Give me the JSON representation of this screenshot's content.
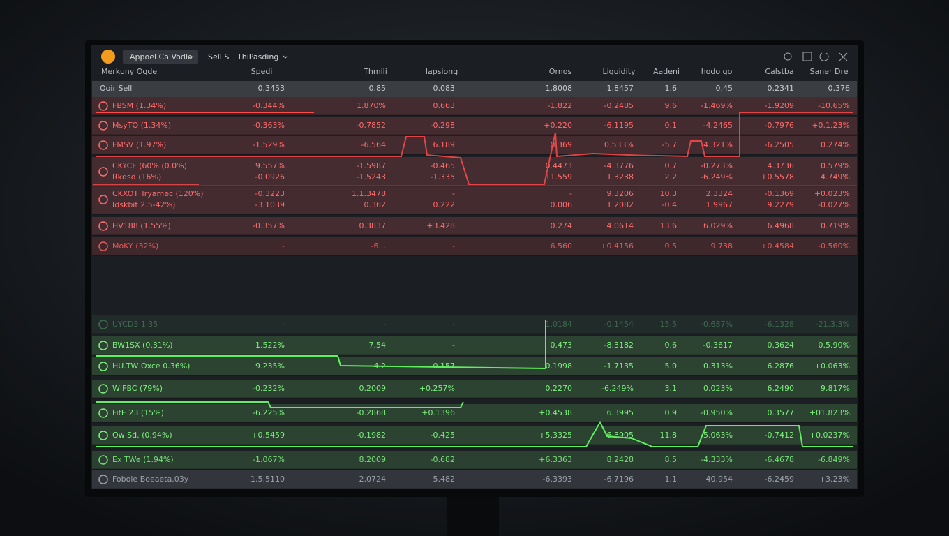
{
  "toolbar": {
    "selector": "Appoel Ca Vodle",
    "mode": "Sell S",
    "filter": "ThiPasding"
  },
  "header": [
    "Merkuny Oqde",
    "Spedi",
    "Thmili",
    "Iapsiong",
    "Ornos",
    "Liquidity",
    "Aadeni",
    "hodo go",
    "Calstba",
    "Saner Dre"
  ],
  "subheader": [
    "Ooir Sell",
    "0.3453",
    "0.85",
    "0.083",
    "1.8008",
    "1.8457",
    "1.6",
    "0.45",
    "0.2341",
    "0.376"
  ],
  "rows": [
    {
      "color": "#ff6a6a",
      "lines": [
        [
          "FBSM (1.34%)",
          "-0.344%",
          "1.870%",
          "0.663",
          "-1.822",
          "-0.2485",
          "9.6",
          "-1.469%",
          "-1.9209",
          "-10.65%"
        ]
      ]
    },
    {
      "color": "#ff6a6a",
      "lines": [
        [
          "MsyTO (1.34%)",
          "-0.363%",
          "-0.7852",
          "-0.298",
          "+0.220",
          "-6.1195",
          "0.1",
          "-4.2465",
          "-0.7976",
          "+0.1.23%"
        ]
      ]
    },
    {
      "color": "#ff6a6a",
      "lines": [
        [
          "FMSV (1.97%)",
          "-1.529%",
          "-6.564",
          "6.189",
          "0.369",
          "0.533%",
          "-5.7",
          "4.321%",
          "-6.2505",
          "0.274%"
        ]
      ]
    },
    {
      "color": "#ff7070",
      "lines": [
        [
          "CKYCF (60% (0.0%)",
          "9.557%",
          "-1.5987",
          "-0.465",
          "0.4473",
          "-4.3776",
          "0.7",
          "-0.273%",
          "4.3736",
          "0.579%"
        ],
        [
          "Rkdsd (16%)",
          "-0.0926",
          "-1.5243",
          "-1.335",
          "11.559",
          "1.3238",
          "2.2",
          "-6.249%",
          "+0.5578",
          "4.749%"
        ]
      ]
    },
    {
      "color": "#ff6a6a",
      "lines": [
        [
          "CKXOT Tryamec (120%)",
          "-0.3223",
          "1.1.3478",
          "-",
          "-",
          "9.3206",
          "10.3",
          "2.3324",
          "-0.1369",
          "+0.023%"
        ],
        [
          "Idskbit 2.5-42%)",
          "-3.1039",
          "0.362",
          "0.222",
          "0.006",
          "1.2082",
          "-0.4",
          "1.9967",
          "9.2279",
          "-0.027%"
        ]
      ]
    },
    {
      "color": "#ff7070",
      "lines": [
        [
          "HV188 (1.55%)",
          "-0.357%",
          "0.3837",
          "+3.428",
          "0.274",
          "4.0614",
          "13.6",
          "6.029%",
          "6.4968",
          "0.719%"
        ]
      ]
    },
    {
      "color": "#e25a5a",
      "lines": [
        [
          "MoKY (32%)",
          "-",
          "-6...",
          "-",
          "6.560",
          "+0.4156",
          "0.5",
          "9.738",
          "+0.4584",
          "-0.560%"
        ]
      ]
    },
    {
      "color": "#3f6a4f",
      "lines": [
        [
          "UYCD3 1.35",
          "-",
          "-",
          "-",
          "1.0184",
          "-0.1454",
          "15.5",
          "-0.687%",
          "-6.1328",
          "-21.3.3%"
        ]
      ]
    },
    {
      "color": "#7cf07c",
      "lines": [
        [
          "BW1SX (0.31%)",
          "1.522%",
          "7.54",
          "-",
          "0.473",
          "-8.3182",
          "0.6",
          "-0.3617",
          "0.3624",
          "0.5.90%"
        ]
      ]
    },
    {
      "color": "#7cf07c",
      "lines": [
        [
          "HU.TW Oxce 0.36%)",
          "9.235%",
          "4.2",
          "-0.157",
          "0.1998",
          "-1.7135",
          "5.0",
          "0.313%",
          "6.2876",
          "+0.063%"
        ]
      ]
    },
    {
      "color": "#7cf07c",
      "lines": [
        [
          "WIFBC (79%)",
          "-0.232%",
          "0.2009",
          "+0.257%",
          "0.2270",
          "-6.249%",
          "3.1",
          "0.023%",
          "6.2490",
          "9.817%"
        ]
      ]
    },
    {
      "color": "#7cf07c",
      "lines": [
        [
          "FitE 23 (15%)",
          "-6.225%",
          "-0.2868",
          "+0.1396",
          "+0.4538",
          "6.3995",
          "0.9",
          "-0.950%",
          "0.3577",
          "+01.823%"
        ]
      ]
    },
    {
      "color": "#7cf07c",
      "lines": [
        [
          "Ow Sd. (0.94%)",
          "+0.5459",
          "-0.1982",
          "-0.425",
          "+5.3325",
          "6.3905",
          "11.8",
          "5.063%",
          "-0.7412",
          "+0.0237%"
        ]
      ]
    },
    {
      "color": "#74e074",
      "lines": [
        [
          "Ex TWe (1.94%)",
          "-1.067%",
          "8.2009",
          "-0.682",
          "+6.3363",
          "8.2428",
          "8.5",
          "-4.333%",
          "-6.4678",
          "-6.849%"
        ]
      ]
    },
    {
      "color": "#9aa3ab",
      "lines": [
        [
          "Fobole Boeaeta.03y",
          "1.5.5110",
          "2.0724",
          "5.482",
          "-6.3393",
          "-6.7196",
          "1.1",
          "40.954",
          "-6.2459",
          "+3.23%"
        ]
      ]
    }
  ]
}
